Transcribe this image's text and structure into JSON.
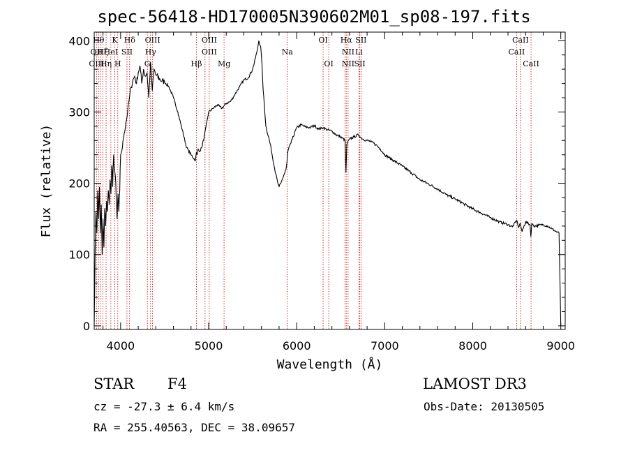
{
  "header": {
    "title": "spec-56418-HD170005N390602M01_sp08-197.fits"
  },
  "footer": {
    "object_class": "STAR",
    "subclass": "F4",
    "survey": "LAMOST DR3",
    "redshift": "cz = -27.3 ± 6.4 km/s",
    "obs_date": "Obs-Date: 20130505",
    "coords": "RA = 255.40563, DEC =  38.09657"
  },
  "chart_data": {
    "type": "line",
    "title": "spec-56418-HD170005N390602M01_sp08-197.fits",
    "xlabel": "Wavelength (Å)",
    "ylabel": "Flux (relative)",
    "xlim": [
      3700,
      9050
    ],
    "ylim": [
      -5,
      412
    ],
    "xticks": [
      4000,
      5000,
      6000,
      7000,
      8000,
      9000
    ],
    "yticks": [
      0,
      100,
      200,
      300,
      400
    ],
    "xtick_labels": [
      "4000",
      "5000",
      "6000",
      "7000",
      "8000",
      "9000"
    ],
    "ytick_labels": [
      "0",
      "100",
      "200",
      "300",
      "400"
    ],
    "series": [
      {
        "name": "flux",
        "x": [
          3700,
          3710,
          3720,
          3730,
          3740,
          3750,
          3760,
          3770,
          3780,
          3790,
          3800,
          3810,
          3820,
          3830,
          3840,
          3850,
          3860,
          3870,
          3880,
          3890,
          3900,
          3910,
          3920,
          3930,
          3940,
          3950,
          3960,
          3970,
          3980,
          3990,
          4000,
          4020,
          4040,
          4060,
          4080,
          4100,
          4120,
          4140,
          4160,
          4180,
          4200,
          4220,
          4240,
          4260,
          4280,
          4300,
          4320,
          4340,
          4360,
          4380,
          4400,
          4450,
          4500,
          4550,
          4600,
          4650,
          4700,
          4750,
          4800,
          4850,
          4860,
          4870,
          4880,
          4900,
          4920,
          4950,
          5000,
          5050,
          5100,
          5150,
          5200,
          5250,
          5300,
          5350,
          5400,
          5450,
          5500,
          5550,
          5570,
          5590,
          5600,
          5620,
          5650,
          5700,
          5750,
          5790,
          5800,
          5820,
          5850,
          5880,
          5890,
          5900,
          5950,
          6000,
          6050,
          6100,
          6150,
          6200,
          6250,
          6300,
          6350,
          6400,
          6450,
          6500,
          6550,
          6560,
          6570,
          6600,
          6650,
          6700,
          6750,
          6800,
          6850,
          6900,
          6950,
          7000,
          7100,
          7200,
          7300,
          7400,
          7500,
          7600,
          7700,
          7800,
          7900,
          8000,
          8100,
          8200,
          8300,
          8400,
          8450,
          8500,
          8520,
          8540,
          8560,
          8600,
          8650,
          8660,
          8670,
          8700,
          8750,
          8800,
          8850,
          8900,
          8950,
          8980,
          9000
        ],
        "values": [
          0,
          100,
          160,
          130,
          190,
          150,
          195,
          130,
          170,
          100,
          150,
          110,
          165,
          140,
          175,
          160,
          190,
          170,
          205,
          185,
          225,
          195,
          240,
          220,
          210,
          180,
          150,
          185,
          160,
          190,
          240,
          250,
          270,
          285,
          300,
          320,
          335,
          345,
          350,
          340,
          355,
          365,
          340,
          360,
          350,
          355,
          320,
          370,
          330,
          360,
          352,
          345,
          342,
          335,
          320,
          300,
          275,
          250,
          240,
          232,
          243,
          240,
          248,
          245,
          250,
          265,
          300,
          305,
          310,
          305,
          312,
          315,
          325,
          335,
          345,
          348,
          360,
          385,
          400,
          392,
          378,
          330,
          280,
          255,
          220,
          198,
          195,
          200,
          210,
          220,
          230,
          245,
          262,
          278,
          282,
          279,
          278,
          281,
          276,
          278,
          275,
          273,
          268,
          265,
          260,
          215,
          255,
          262,
          265,
          268,
          262,
          260,
          258,
          254,
          248,
          240,
          232,
          224,
          215,
          205,
          199,
          192,
          184,
          178,
          171,
          164,
          158,
          152,
          146,
          142,
          139,
          148,
          138,
          144,
          132,
          146,
          142,
          125,
          143,
          140,
          141,
          142,
          140,
          136,
          132,
          130,
          0
        ]
      }
    ],
    "lines": [
      {
        "wl": 3727,
        "name": "OII"
      },
      {
        "wl": 3750,
        "name": "Hθ"
      },
      {
        "wl": 3771,
        "name": "Hη"
      },
      {
        "wl": 3798,
        "name": "Hζ"
      },
      {
        "wl": 3835,
        "name": "Hη"
      },
      {
        "wl": 3889,
        "name": "HeI"
      },
      {
        "wl": 3934,
        "name": "K"
      },
      {
        "wl": 3968,
        "name": "H"
      },
      {
        "wl": 4072,
        "name": "SII"
      },
      {
        "wl": 4102,
        "name": "Hδ"
      },
      {
        "wl": 4304,
        "name": "G"
      },
      {
        "wl": 4340,
        "name": "Hγ"
      },
      {
        "wl": 4363,
        "name": "OIII"
      },
      {
        "wl": 4861,
        "name": "Hβ"
      },
      {
        "wl": 4959,
        "name": "OIII"
      },
      {
        "wl": 5007,
        "name": "OIII"
      },
      {
        "wl": 5175,
        "name": "Mg"
      },
      {
        "wl": 5893,
        "name": "Na"
      },
      {
        "wl": 6300,
        "name": "OI"
      },
      {
        "wl": 6364,
        "name": "OI"
      },
      {
        "wl": 6548,
        "name": "NII"
      },
      {
        "wl": 6563,
        "name": "Hα"
      },
      {
        "wl": 6584,
        "name": "NII"
      },
      {
        "wl": 6707,
        "name": "Li"
      },
      {
        "wl": 6717,
        "name": "SII"
      },
      {
        "wl": 6731,
        "name": "SII"
      },
      {
        "wl": 8498,
        "name": "CaII"
      },
      {
        "wl": 8542,
        "name": "CaII"
      },
      {
        "wl": 8662,
        "name": "CaII"
      }
    ],
    "line_labels": [
      {
        "text": "Hθ",
        "row": 0,
        "wl": 3750
      },
      {
        "text": "OII",
        "row": 1,
        "wl": 3727
      },
      {
        "text": "OIII",
        "row": 2,
        "wl": 3727
      },
      {
        "text": "K",
        "row": 0,
        "wl": 3934
      },
      {
        "text": "Hδ",
        "row": 0,
        "wl": 4102
      },
      {
        "text": "OIII",
        "row": 0,
        "wl": 4363
      },
      {
        "text": "Hζ",
        "row": 1,
        "wl": 3798
      },
      {
        "text": "HeI",
        "row": 1,
        "wl": 3889
      },
      {
        "text": "SII",
        "row": 1,
        "wl": 4072
      },
      {
        "text": "Hη",
        "row": 2,
        "wl": 3835
      },
      {
        "text": "H",
        "row": 2,
        "wl": 3968
      },
      {
        "text": "Hγ",
        "row": 1,
        "wl": 4340
      },
      {
        "text": "G",
        "row": 2,
        "wl": 4304
      },
      {
        "text": "OIII",
        "row": 0,
        "wl": 5007
      },
      {
        "text": "OIII",
        "row": 1,
        "wl": 5007
      },
      {
        "text": "Hβ",
        "row": 2,
        "wl": 4861
      },
      {
        "text": "Mg",
        "row": 2,
        "wl": 5175
      },
      {
        "text": "Na",
        "row": 1,
        "wl": 5893
      },
      {
        "text": "OI",
        "row": 0,
        "wl": 6300
      },
      {
        "text": "OI",
        "row": 2,
        "wl": 6364
      },
      {
        "text": "Hα",
        "row": 0,
        "wl": 6563
      },
      {
        "text": "SII",
        "row": 0,
        "wl": 6731
      },
      {
        "text": "NII",
        "row": 1,
        "wl": 6584
      },
      {
        "text": "Li",
        "row": 1,
        "wl": 6707
      },
      {
        "text": "NII",
        "row": 2,
        "wl": 6584
      },
      {
        "text": "SII",
        "row": 2,
        "wl": 6717
      },
      {
        "text": "CaII",
        "row": 0,
        "wl": 8542
      },
      {
        "text": "CaII",
        "row": 1,
        "wl": 8498
      },
      {
        "text": "CaII",
        "row": 2,
        "wl": 8662
      }
    ],
    "colors": {
      "line": "#000000",
      "marker": "#cc0000",
      "axes": "#000000"
    }
  }
}
